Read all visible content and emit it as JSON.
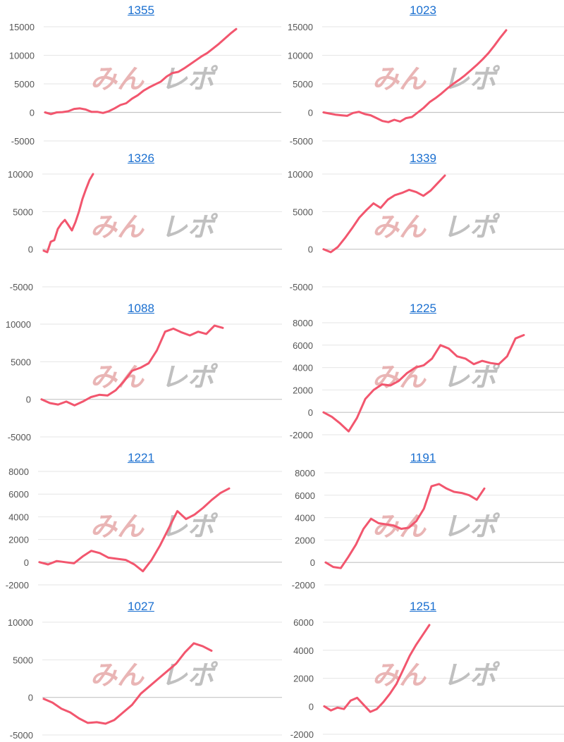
{
  "colors": {
    "line": "#f2566e",
    "grid": "#e6e6e6",
    "zero": "#c4c4c4",
    "title": "#1a6fd0",
    "watermark_red": "#e3a3a3",
    "watermark_gray": "#b5b5b5"
  },
  "watermark": "みんレポ",
  "chart_data": [
    {
      "type": "line",
      "title": "1355",
      "ylim": [
        -5000,
        15000
      ],
      "yticks": [
        "15000",
        "10000",
        "5000",
        "0",
        "-5000"
      ],
      "tick_values": [
        15000,
        10000,
        5000,
        0,
        -5000
      ],
      "values": [
        0,
        -300,
        0,
        50,
        200,
        600,
        700,
        500,
        100,
        100,
        -100,
        200,
        700,
        1300,
        1600,
        2400,
        3000,
        3800,
        4400,
        4900,
        5400,
        6300,
        6900,
        7100,
        7700,
        8400,
        9100,
        9800,
        10400,
        11200,
        12000,
        12900,
        13800,
        14600
      ]
    },
    {
      "type": "line",
      "title": "1023",
      "ylim": [
        -5000,
        15000
      ],
      "yticks": [
        "15000",
        "10000",
        "5000",
        "0",
        "-5000"
      ],
      "tick_values": [
        15000,
        10000,
        5000,
        0,
        -5000
      ],
      "values": [
        0,
        -200,
        -400,
        -500,
        -600,
        -100,
        100,
        -300,
        -500,
        -1000,
        -1500,
        -1700,
        -1300,
        -1600,
        -1000,
        -800,
        0,
        800,
        1800,
        2500,
        3300,
        4200,
        5000,
        5700,
        6500,
        7400,
        8300,
        9300,
        10400,
        11700,
        13100,
        14400
      ]
    },
    {
      "type": "line",
      "title": "1326",
      "ylim": [
        -5000,
        10000
      ],
      "yticks": [
        "10000",
        "5000",
        "0",
        "-5000"
      ],
      "tick_values": [
        10000,
        5000,
        0,
        -5000
      ],
      "values": [
        -200,
        -400,
        1000,
        1200,
        2700,
        3400,
        3900,
        3200,
        2500,
        3600,
        5000,
        6700,
        8000,
        9200,
        10000
      ]
    },
    {
      "type": "line",
      "title": "1339",
      "ylim": [
        -5000,
        10000
      ],
      "yticks": [
        "10000",
        "5000",
        "0",
        "-5000"
      ],
      "tick_values": [
        10000,
        5000,
        0,
        -5000
      ],
      "values": [
        0,
        -400,
        300,
        1500,
        2800,
        4200,
        5200,
        6100,
        5500,
        6600,
        7200,
        7500,
        7900,
        7600,
        7100,
        7800,
        8800,
        9800
      ]
    },
    {
      "type": "line",
      "title": "1088",
      "ylim": [
        -5000,
        10000
      ],
      "yticks": [
        "10000",
        "5000",
        "0",
        "-5000"
      ],
      "tick_values": [
        10000,
        5000,
        0,
        -5000
      ],
      "values": [
        0,
        -500,
        -700,
        -300,
        -800,
        -300,
        300,
        600,
        500,
        1200,
        2400,
        3800,
        4200,
        4800,
        6500,
        9000,
        9400,
        8900,
        8500,
        9000,
        8700,
        9800,
        9500
      ]
    },
    {
      "type": "line",
      "title": "1225",
      "ylim": [
        -2000,
        8000
      ],
      "yticks": [
        "8000",
        "6000",
        "4000",
        "2000",
        "0",
        "-2000"
      ],
      "tick_values": [
        8000,
        6000,
        4000,
        2000,
        0,
        -2000
      ],
      "values": [
        0,
        -400,
        -1000,
        -1700,
        -500,
        1200,
        2000,
        2500,
        2400,
        2800,
        3500,
        4000,
        4200,
        4800,
        6000,
        5700,
        5000,
        4800,
        4300,
        4600,
        4400,
        4300,
        5000,
        6600,
        6900
      ]
    },
    {
      "type": "line",
      "title": "1221",
      "ylim": [
        -2000,
        8000
      ],
      "yticks": [
        "8000",
        "6000",
        "4000",
        "2000",
        "0",
        "-2000"
      ],
      "tick_values": [
        8000,
        6000,
        4000,
        2000,
        0,
        -2000
      ],
      "values": [
        0,
        -200,
        100,
        0,
        -100,
        500,
        1000,
        800,
        400,
        300,
        200,
        -200,
        -800,
        200,
        1500,
        3000,
        4500,
        3800,
        4200,
        4800,
        5500,
        6100,
        6500
      ]
    },
    {
      "type": "line",
      "title": "1191",
      "ylim": [
        -2000,
        8000
      ],
      "yticks": [
        "8000",
        "6000",
        "4000",
        "2000",
        "0",
        "-2000"
      ],
      "tick_values": [
        8000,
        6000,
        4000,
        2000,
        0,
        -2000
      ],
      "values": [
        0,
        -400,
        -500,
        500,
        1600,
        3000,
        3900,
        3500,
        3400,
        3300,
        3000,
        3100,
        3700,
        4800,
        6800,
        7000,
        6600,
        6300,
        6200,
        6000,
        5600,
        6600
      ]
    },
    {
      "type": "line",
      "title": "1027",
      "ylim": [
        -5000,
        10000
      ],
      "yticks": [
        "10000",
        "5000",
        "0",
        "-5000"
      ],
      "tick_values": [
        10000,
        5000,
        0,
        -5000
      ],
      "values": [
        -200,
        -700,
        -1500,
        -2000,
        -2800,
        -3400,
        -3300,
        -3500,
        -3000,
        -2000,
        -1000,
        500,
        1500,
        2500,
        3500,
        4500,
        6000,
        7200,
        6800,
        6200
      ]
    },
    {
      "type": "line",
      "title": "1251",
      "ylim": [
        -2000,
        6000
      ],
      "yticks": [
        "6000",
        "4000",
        "2000",
        "0",
        "-2000"
      ],
      "tick_values": [
        6000,
        4000,
        2000,
        0,
        -2000
      ],
      "values": [
        0,
        -300,
        -100,
        -200,
        400,
        600,
        100,
        -400,
        -200,
        300,
        900,
        1600,
        2600,
        3600,
        4400,
        5100,
        5800
      ]
    }
  ]
}
